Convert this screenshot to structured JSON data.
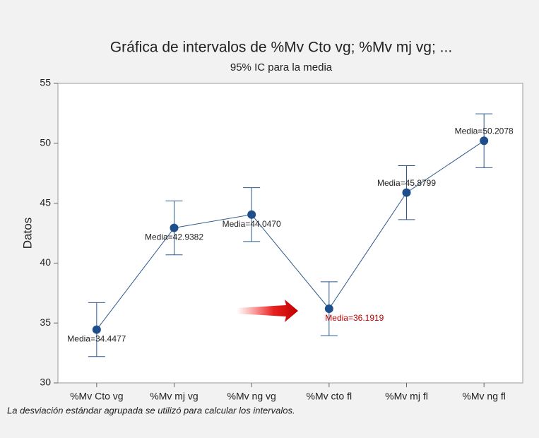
{
  "chart_data": {
    "type": "interval",
    "title": "Gráfica de intervalos de %Mv Cto vg; %Mv mj vg; ...",
    "subtitle": "95% IC para la media",
    "ylabel": "Datos",
    "footnote": "La desviación estándar agrupada se utilizó para calcular los intervalos.",
    "categories": [
      "%Mv Cto vg",
      "%Mv mj vg",
      "%Mv ng vg",
      "%Mv cto fl",
      "%Mv mj fl",
      "%Mv ng fl"
    ],
    "values": [
      34.4477,
      42.9382,
      44.047,
      36.1919,
      45.8799,
      50.2078
    ],
    "value_labels": [
      "Media=34.4477",
      "Media=42.9382",
      "Media=44.0470",
      "Media=36.1919",
      "Media=45.8799",
      "Media=50.2078"
    ],
    "value_label_colors": [
      "#222222",
      "#222222",
      "#222222",
      "#c00000",
      "#222222",
      "#222222"
    ],
    "errors": [
      2.25,
      2.25,
      2.25,
      2.25,
      2.25,
      2.25
    ],
    "color": "#1f4e8c",
    "ylim": [
      30,
      55
    ],
    "yticks": [
      30,
      35,
      40,
      45,
      50,
      55
    ]
  }
}
